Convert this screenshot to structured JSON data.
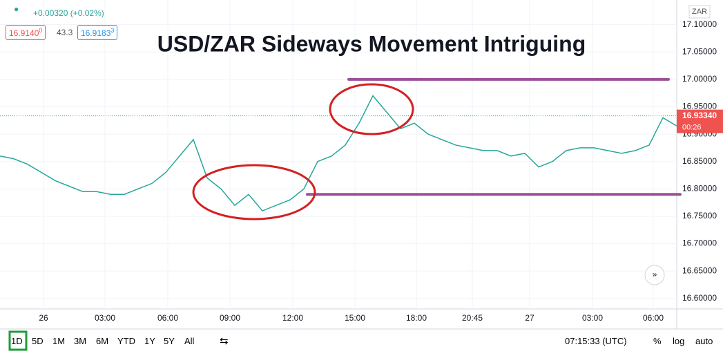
{
  "chart_data": {
    "type": "line",
    "title": "USD/ZAR Sideways Movement Intriguing",
    "currency": "ZAR",
    "x_ticks": [
      "26",
      "03:00",
      "06:00",
      "09:00",
      "12:00",
      "15:00",
      "18:00",
      "20:45",
      "27",
      "03:00",
      "06:00"
    ],
    "series": [
      {
        "name": "USD/ZAR",
        "color": "#26a69a",
        "values": [
          16.86,
          16.855,
          16.845,
          16.83,
          16.815,
          16.805,
          16.795,
          16.795,
          16.79,
          16.79,
          16.8,
          16.81,
          16.83,
          16.86,
          16.89,
          16.82,
          16.8,
          16.77,
          16.79,
          16.76,
          16.77,
          16.78,
          16.8,
          16.85,
          16.86,
          16.88,
          16.92,
          16.97,
          16.94,
          16.91,
          16.92,
          16.9,
          16.89,
          16.88,
          16.875,
          16.87,
          16.87,
          16.86,
          16.865,
          16.84,
          16.85,
          16.87,
          16.875,
          16.875,
          16.87,
          16.865,
          16.87,
          16.88,
          16.93,
          16.915
        ]
      }
    ],
    "levels": [
      {
        "value": 17.0,
        "color": "#9b4f9b"
      },
      {
        "value": 16.79,
        "color": "#9b4f9b"
      }
    ],
    "last_price": {
      "value": 16.9334,
      "label": "16.93340"
    },
    "countdown": "00:26",
    "ylim": [
      16.577,
      17.145
    ],
    "yticks": [
      {
        "value": 16.6,
        "label": "16.60000"
      },
      {
        "value": 16.65,
        "label": "16.65000"
      },
      {
        "value": 16.7,
        "label": "16.70000"
      },
      {
        "value": 16.75,
        "label": "16.75000"
      },
      {
        "value": 16.8,
        "label": "16.80000"
      },
      {
        "value": 16.85,
        "label": "16.85000"
      },
      {
        "value": 16.9,
        "label": "16.90000"
      },
      {
        "value": 16.95,
        "label": "16.95000"
      },
      {
        "value": 17.0,
        "label": "17.00000"
      },
      {
        "value": 17.05,
        "label": "17.05000"
      },
      {
        "value": 17.1,
        "label": "17.10000"
      }
    ],
    "grid": true
  },
  "header": {
    "change": "+0.00320 (+0.02%)",
    "bid": "16.9140",
    "bid_small": "0",
    "spread": "43.3",
    "ask": "16.9183",
    "ask_small": "3"
  },
  "toolbar": {
    "ranges": [
      "1D",
      "5D",
      "1M",
      "3M",
      "6M",
      "YTD",
      "1Y",
      "5Y",
      "All"
    ],
    "clock": "07:15:33 (UTC)",
    "percent": "%",
    "log": "log",
    "auto": "auto"
  }
}
